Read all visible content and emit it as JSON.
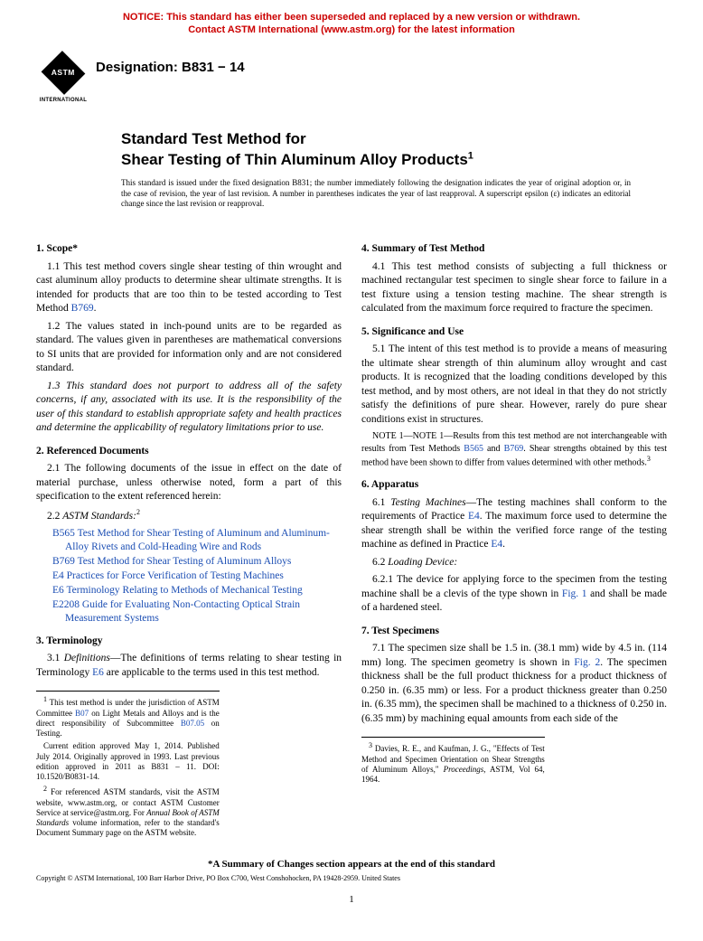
{
  "notice": {
    "color": "#cc0000",
    "line1": "NOTICE: This standard has either been superseded and replaced by a new version or withdrawn.",
    "line2": "Contact ASTM International (www.astm.org) for the latest information"
  },
  "logo": {
    "label": "ASTM",
    "subtitle": "INTERNATIONAL"
  },
  "designation": "Designation: B831 − 14",
  "title": {
    "line1": "Standard Test Method for",
    "line2": "Shear Testing of Thin Aluminum Alloy Products",
    "sup": "1"
  },
  "issued_note": "This standard is issued under the fixed designation B831; the number immediately following the designation indicates the year of original adoption or, in the case of revision, the year of last revision. A number in parentheses indicates the year of last reapproval. A superscript epsilon (ε) indicates an editorial change since the last revision or reapproval.",
  "left": {
    "s1": {
      "head": "1. Scope*",
      "p1_a": "1.1 This test method covers single shear testing of thin wrought and cast aluminum alloy products to determine shear ultimate strengths. It is intended for products that are too thin to be tested according to Test Method ",
      "p1_link": "B769",
      "p1_b": ".",
      "p2": "1.2 The values stated in inch-pound units are to be regarded as standard. The values given in parentheses are mathematical conversions to SI units that are provided for information only and are not considered standard.",
      "p3": "1.3 This standard does not purport to address all of the safety concerns, if any, associated with its use. It is the responsibility of the user of this standard to establish appropriate safety and health practices and determine the applicability of regulatory limitations prior to use."
    },
    "s2": {
      "head": "2. Referenced Documents",
      "p1": "2.1 The following documents of the issue in effect on the date of material purchase, unless otherwise noted, form a part of this specification to the extent referenced herein:",
      "p2_label": "2.2 ",
      "p2_italic": "ASTM Standards:",
      "p2_sup": "2",
      "refs": [
        "B565 Test Method for Shear Testing of Aluminum and Aluminum-Alloy Rivets and Cold-Heading Wire and Rods",
        "B769 Test Method for Shear Testing of Aluminum Alloys",
        "E4 Practices for Force Verification of Testing Machines",
        "E6 Terminology Relating to Methods of Mechanical Testing",
        "E2208 Guide for Evaluating Non-Contacting Optical Strain Measurement Systems"
      ]
    },
    "s3": {
      "head": "3. Terminology",
      "p1_a": "3.1 ",
      "p1_i": "Definitions",
      "p1_b": "—The definitions of terms relating to shear testing in Terminology ",
      "p1_link": "E6",
      "p1_c": " are applicable to the terms used in this test method."
    },
    "footnotes": {
      "f1_a": "This test method is under the jurisdiction of ASTM Committee ",
      "f1_l1": "B07",
      "f1_b": " on Light Metals and Alloys and is the direct responsibility of Subcommittee ",
      "f1_l2": "B07.05",
      "f1_c": " on Testing.",
      "f1_d": "Current edition approved May 1, 2014. Published July 2014. Originally approved in 1993. Last previous edition approved in 2011 as B831 – 11. DOI: 10.1520/B0831-14.",
      "f2_a": "For referenced ASTM standards, visit the ASTM website, www.astm.org, or contact ASTM Customer Service at service@astm.org. For ",
      "f2_i": "Annual Book of ASTM Standards",
      "f2_b": " volume information, refer to the standard's Document Summary page on the ASTM website."
    }
  },
  "right": {
    "s4": {
      "head": "4. Summary of Test Method",
      "p1": "4.1 This test method consists of subjecting a full thickness or machined rectangular test specimen to single shear force to failure in a test fixture using a tension testing machine. The shear strength is calculated from the maximum force required to fracture the specimen."
    },
    "s5": {
      "head": "5. Significance and Use",
      "p1": "5.1 The intent of this test method is to provide a means of measuring the ultimate shear strength of thin aluminum alloy wrought and cast products. It is recognized that the loading conditions developed by this test method, and by most others, are not ideal in that they do not strictly satisfy the definitions of pure shear. However, rarely do pure shear conditions exist in structures.",
      "note_a": "NOTE 1—Results from this test method are not interchangeable with results from Test Methods ",
      "note_l1": "B565",
      "note_mid": " and ",
      "note_l2": "B769",
      "note_b": ". Shear strengths obtained by this test method have been shown to differ from values determined with other methods.",
      "note_sup": "3"
    },
    "s6": {
      "head": "6. Apparatus",
      "p1_a": "6.1 ",
      "p1_i": "Testing Machines",
      "p1_b": "—The testing machines shall conform to the requirements of Practice ",
      "p1_l1": "E4",
      "p1_c": ". The maximum force used to determine the shear strength shall be within the verified force range of the testing machine as defined in Practice ",
      "p1_l2": "E4",
      "p1_d": ".",
      "p2_a": "6.2 ",
      "p2_i": "Loading Device:",
      "p3_a": "6.2.1 The device for applying force to the specimen from the testing machine shall be a clevis of the type shown in ",
      "p3_l": "Fig. 1",
      "p3_b": " and shall be made of a hardened steel."
    },
    "s7": {
      "head": "7. Test Specimens",
      "p1_a": "7.1 The specimen size shall be 1.5 in. (38.1 mm) wide by 4.5 in. (114 mm) long. The specimen geometry is shown in ",
      "p1_l": "Fig. 2",
      "p1_b": ". The specimen thickness shall be the full product thickness for a product thickness of 0.250 in. (6.35 mm) or less. For a product thickness greater than 0.250 in. (6.35 mm), the specimen shall be machined to a thickness of 0.250 in. (6.35 mm) by machining equal amounts from each side of the"
    },
    "footnotes": {
      "f3_a": "Davies, R. E., and Kaufman, J. G., \"Effects of Test Method and Specimen Orientation on Shear Strengths of Aluminum Alloys,\" ",
      "f3_i": "Proceedings",
      "f3_b": ", ASTM, Vol 64, 1964."
    }
  },
  "bottom": {
    "summary": "*A Summary of Changes section appears at the end of this standard",
    "copyright": "Copyright © ASTM International, 100 Barr Harbor Drive, PO Box C700, West Conshohocken, PA 19428-2959. United States",
    "page": "1"
  }
}
